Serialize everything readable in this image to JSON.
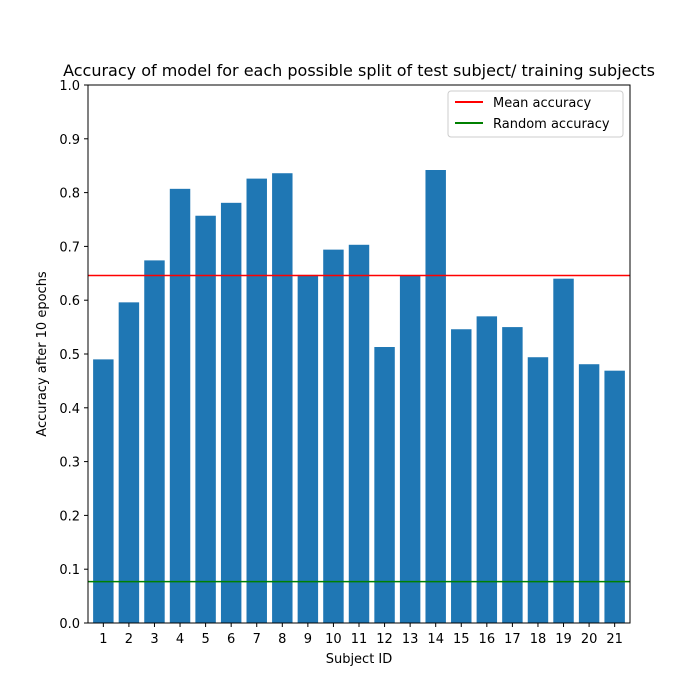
{
  "chart_data": {
    "type": "bar",
    "title": "Accuracy of model for each possible split of test subject/ training subjects",
    "xlabel": "Subject ID",
    "ylabel": "Accuracy after 10 epochs",
    "categories": [
      "1",
      "2",
      "3",
      "4",
      "5",
      "6",
      "7",
      "8",
      "9",
      "10",
      "11",
      "12",
      "13",
      "14",
      "15",
      "16",
      "17",
      "18",
      "19",
      "20",
      "21"
    ],
    "values": [
      0.49,
      0.596,
      0.674,
      0.807,
      0.757,
      0.781,
      0.826,
      0.836,
      0.647,
      0.694,
      0.703,
      0.513,
      0.646,
      0.842,
      0.546,
      0.57,
      0.55,
      0.494,
      0.64,
      0.481,
      0.469
    ],
    "ylim": [
      0,
      1.0
    ],
    "yticks": [
      "0.0",
      "0.1",
      "0.2",
      "0.3",
      "0.4",
      "0.5",
      "0.6",
      "0.7",
      "0.8",
      "0.9",
      "1.0"
    ],
    "bar_color": "#1f77b4",
    "grid": false,
    "legend_position": "top-right",
    "reference_lines": [
      {
        "name": "Mean accuracy",
        "value": 0.646,
        "color": "#ff0000"
      },
      {
        "name": "Random accuracy",
        "value": 0.077,
        "color": "#008000"
      }
    ]
  }
}
